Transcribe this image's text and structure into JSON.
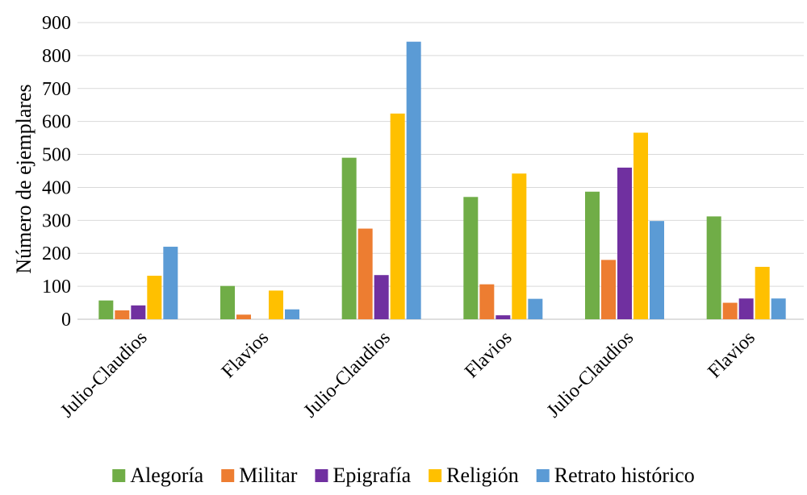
{
  "chart_data": {
    "type": "bar",
    "title": "",
    "xlabel": "",
    "ylabel": "Número de ejemplares",
    "ylim": [
      0,
      900
    ],
    "yticks": [
      0,
      100,
      200,
      300,
      400,
      500,
      600,
      700,
      800,
      900
    ],
    "grid": true,
    "legend_position": "bottom",
    "categories": [
      "Julio-Claudios",
      "Flavios",
      "Julio-Claudios",
      "Flavios",
      "Julio-Claudios",
      "Flavios"
    ],
    "series": [
      {
        "name": "Alegoría",
        "color": "#70ad47",
        "values": [
          57,
          101,
          490,
          371,
          387,
          312
        ]
      },
      {
        "name": "Militar",
        "color": "#ed7d31",
        "values": [
          27,
          14,
          275,
          106,
          180,
          50
        ]
      },
      {
        "name": "Epigrafía",
        "color": "#7030a0",
        "values": [
          42,
          0,
          134,
          12,
          460,
          63
        ]
      },
      {
        "name": "Religión",
        "color": "#ffc000",
        "values": [
          132,
          87,
          624,
          442,
          566,
          159
        ]
      },
      {
        "name": "Retrato histórico",
        "color": "#5b9bd5",
        "values": [
          220,
          30,
          842,
          62,
          298,
          63
        ]
      }
    ]
  }
}
